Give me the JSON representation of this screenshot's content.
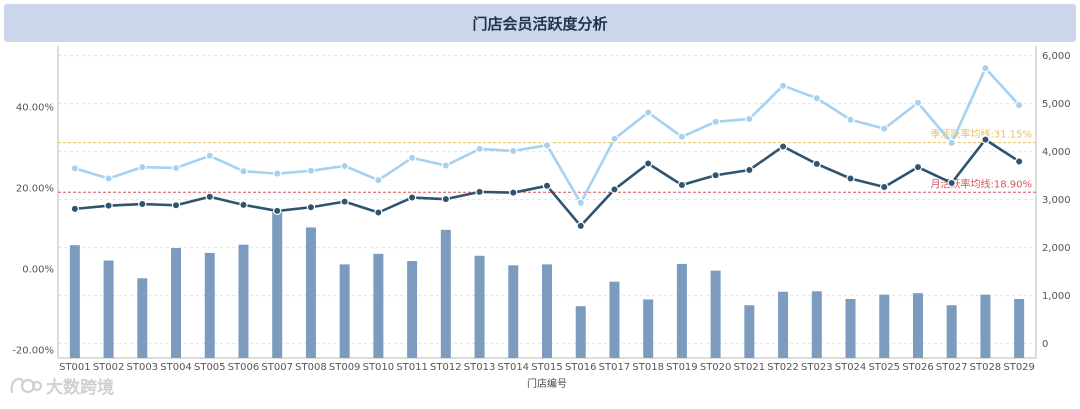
{
  "title": "门店会员活跃度分析",
  "watermark": "大数跨境",
  "chart_data": {
    "type": "bar+line",
    "title": "门店会员活跃度分析",
    "xlabel": "门店编号",
    "categories": [
      "ST001",
      "ST002",
      "ST003",
      "ST004",
      "ST005",
      "ST006",
      "ST007",
      "ST008",
      "ST009",
      "ST010",
      "ST011",
      "ST012",
      "ST013",
      "ST014",
      "ST015",
      "ST016",
      "ST017",
      "ST018",
      "ST019",
      "ST020",
      "ST021",
      "ST022",
      "ST023",
      "ST024",
      "ST025",
      "ST026",
      "ST027",
      "ST028",
      "ST029"
    ],
    "left_axis": {
      "min": -22,
      "max": 55,
      "ticks": [
        -20,
        0,
        20,
        40
      ],
      "tick_labels": [
        "-20.00%",
        "0.00%",
        "20.00%",
        "40.00%"
      ]
    },
    "right_axis": {
      "min": -300,
      "max": 6200,
      "ticks": [
        0,
        1000,
        2000,
        3000,
        4000,
        5000,
        6000
      ],
      "tick_labels": [
        "0",
        "1,000",
        "2,000",
        "3,000",
        "4,000",
        "5,000",
        "6,000"
      ]
    },
    "bars": {
      "axis": "right",
      "color": "#7b9cbf",
      "values": [
        2050,
        1730,
        1360,
        1990,
        1890,
        2060,
        2740,
        2420,
        1650,
        1870,
        1720,
        2370,
        1830,
        1630,
        1650,
        780,
        1290,
        920,
        1660,
        1520,
        800,
        1080,
        1090,
        930,
        1020,
        1050,
        800,
        1020,
        930
      ]
    },
    "series": [
      {
        "name": "季活跃率",
        "axis": "left",
        "color": "#a6d1ef",
        "values": [
          24.8,
          22.3,
          25.1,
          24.9,
          27.9,
          24.1,
          23.5,
          24.2,
          25.4,
          21.9,
          27.4,
          25.5,
          29.6,
          29.1,
          30.5,
          16.3,
          32.1,
          38.6,
          32.6,
          36.3,
          37.0,
          45.2,
          42.1,
          36.8,
          34.6,
          41.0,
          31.1,
          49.5,
          40.4
        ]
      },
      {
        "name": "月活跃率",
        "axis": "left",
        "color": "#2f5470",
        "values": [
          14.8,
          15.6,
          16.0,
          15.7,
          17.8,
          15.8,
          14.3,
          15.2,
          16.6,
          13.9,
          17.6,
          17.2,
          19.0,
          18.8,
          20.5,
          10.6,
          19.6,
          26.0,
          20.7,
          23.1,
          24.4,
          30.2,
          25.9,
          22.3,
          20.2,
          25.1,
          21.2,
          31.9,
          26.5
        ]
      }
    ],
    "reference_lines": [
      {
        "label": "季活跃率均线:31.15%",
        "value": 31.15,
        "axis": "left",
        "color": "#e8c25a"
      },
      {
        "label": "月活跃率均线:18.90%",
        "value": 18.9,
        "axis": "left",
        "color": "#d9535a"
      }
    ],
    "grid": true,
    "gridline_values_right": [
      0,
      1000,
      2000,
      3000,
      4000,
      5000,
      6000
    ]
  }
}
